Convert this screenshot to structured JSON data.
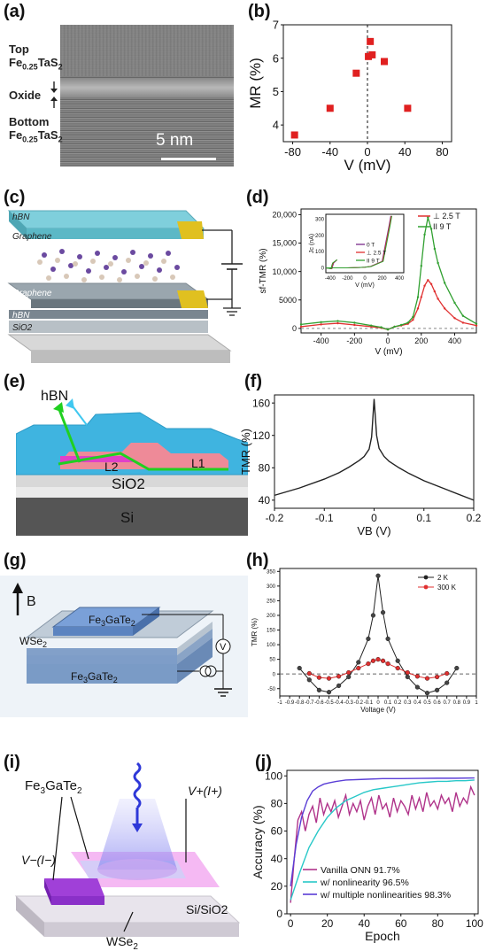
{
  "panels": {
    "a": {
      "label": "(a)",
      "top_label": "Top",
      "top_material": "Fe0.25TaS2",
      "oxide_label": "Oxide",
      "bottom_label": "Bottom",
      "bottom_material": "Fe0.25TaS2",
      "scale_bar": "5 nm"
    },
    "b": {
      "label": "(b)"
    },
    "c": {
      "label": "(c)",
      "layers": [
        "hBN",
        "Graphene",
        "Graphene",
        "hBN",
        "SiO2"
      ]
    },
    "d": {
      "label": "(d)",
      "inset_legend": [
        "0 T",
        "⊥ 2.5 T",
        "II 9 T"
      ]
    },
    "e": {
      "label": "(e)",
      "layer_labels": [
        "hBN",
        "L2",
        "L1",
        "SiO2",
        "Si"
      ]
    },
    "f": {
      "label": "(f)"
    },
    "g": {
      "label": "(g)",
      "field": "B",
      "top_layer": "Fe3GaTe2",
      "spacer": "WSe2",
      "bottom_layer": "Fe3GaTe2",
      "meter": "V"
    },
    "h": {
      "label": "(h)"
    },
    "i": {
      "label": "(i)",
      "labels": [
        "Fe3GaTe2",
        "V+(I+)",
        "V−(I−)",
        "Si/SiO2",
        "WSe2"
      ]
    },
    "j": {
      "label": "(j)"
    }
  },
  "chart_data": [
    {
      "id": "b",
      "type": "scatter",
      "xlabel": "V (mV)",
      "ylabel": "MR (%)",
      "xlim": [
        -90,
        90
      ],
      "ylim": [
        3.5,
        7
      ],
      "xticks": [
        -80,
        -40,
        0,
        40,
        80
      ],
      "yticks": [
        4,
        5,
        6,
        7
      ],
      "points": [
        {
          "x": -78,
          "y": 3.7
        },
        {
          "x": -40,
          "y": 4.5
        },
        {
          "x": -12,
          "y": 5.55
        },
        {
          "x": 1,
          "y": 6.05
        },
        {
          "x": 3,
          "y": 6.5
        },
        {
          "x": 5,
          "y": 6.1
        },
        {
          "x": 18,
          "y": 5.9
        },
        {
          "x": 43,
          "y": 4.5
        }
      ],
      "dashed_vline_at": 0,
      "color": "#e02020"
    },
    {
      "id": "d",
      "type": "line",
      "xlabel": "V (mV)",
      "ylabel": "sf-TMR (%)",
      "xlim": [
        -520,
        530
      ],
      "ylim": [
        -800,
        21000
      ],
      "xticks": [
        -400,
        -200,
        0,
        200,
        400
      ],
      "yticks": [
        0,
        5000,
        10000,
        15000,
        20000
      ],
      "ytick_labels": [
        "0",
        "5000",
        "10,000",
        "15,000",
        "20,000"
      ],
      "series": [
        {
          "name": "⊥ 2.5 T",
          "color": "#e03030",
          "x": [
            -520,
            -400,
            -300,
            -200,
            -100,
            -40,
            0,
            40,
            80,
            120,
            150,
            180,
            200,
            220,
            240,
            260,
            280,
            300,
            340,
            400,
            450,
            530
          ],
          "y": [
            300,
            700,
            900,
            600,
            300,
            100,
            -200,
            300,
            500,
            800,
            1500,
            3500,
            5500,
            7500,
            8500,
            7800,
            6500,
            5200,
            3500,
            1800,
            1000,
            500
          ]
        },
        {
          "name": "II 9 T",
          "color": "#30a030",
          "x": [
            -520,
            -400,
            -300,
            -200,
            -100,
            -40,
            0,
            40,
            80,
            120,
            150,
            180,
            200,
            220,
            240,
            260,
            280,
            300,
            340,
            400,
            450,
            530
          ],
          "y": [
            700,
            1100,
            1300,
            1000,
            500,
            200,
            -200,
            300,
            600,
            1000,
            2000,
            5500,
            11000,
            16500,
            19500,
            17500,
            14000,
            11500,
            8000,
            4500,
            2200,
            800
          ]
        }
      ],
      "inset": {
        "xlabel": "V (mV)",
        "ylabel": "Jc (nA)",
        "xticks": [
          -400,
          -200,
          0,
          200,
          400
        ],
        "yticks": [
          0,
          100,
          200,
          300
        ],
        "series_names": [
          "0 T",
          "⊥ 2.5 T",
          "II 9 T"
        ],
        "series_colors": [
          "#7a2a8a",
          "#e03030",
          "#30a030"
        ]
      }
    },
    {
      "id": "f",
      "type": "line",
      "xlabel": "VB (V)",
      "ylabel": "TMR (%)",
      "xlim": [
        -0.2,
        0.2
      ],
      "ylim": [
        30,
        170
      ],
      "xticks": [
        -0.2,
        -0.1,
        0.0,
        0.1,
        0.2
      ],
      "yticks": [
        40,
        80,
        120,
        160
      ],
      "series": [
        {
          "color": "#222222",
          "x": [
            -0.2,
            -0.15,
            -0.1,
            -0.07,
            -0.05,
            -0.03,
            -0.02,
            -0.01,
            -0.005,
            0,
            0.005,
            0.01,
            0.02,
            0.03,
            0.05,
            0.07,
            0.1,
            0.15,
            0.2
          ],
          "y": [
            46,
            55,
            66,
            74,
            81,
            89,
            94,
            103,
            118,
            165,
            120,
            104,
            94,
            88,
            80,
            73,
            64,
            52,
            40
          ]
        }
      ]
    },
    {
      "id": "h",
      "type": "line",
      "xlabel": "Voltage (V)",
      "ylabel": "TMR (%)",
      "xlim": [
        -1.0,
        1.0
      ],
      "ylim": [
        -75,
        360
      ],
      "xticks": [
        -1.0,
        -0.9,
        -0.8,
        -0.7,
        -0.6,
        -0.5,
        -0.4,
        -0.3,
        -0.2,
        -0.1,
        0.0,
        0.1,
        0.2,
        0.3,
        0.4,
        0.5,
        0.6,
        0.7,
        0.8,
        0.9,
        1.0
      ],
      "yticks": [
        -50,
        0,
        50,
        100,
        150,
        200,
        250,
        300,
        350
      ],
      "series": [
        {
          "name": "2 K",
          "color": "#222222",
          "x": [
            -0.8,
            -0.7,
            -0.6,
            -0.5,
            -0.4,
            -0.3,
            -0.2,
            -0.1,
            -0.05,
            0,
            0.05,
            0.1,
            0.2,
            0.3,
            0.4,
            0.5,
            0.6,
            0.7,
            0.8
          ],
          "y": [
            20,
            -20,
            -55,
            -62,
            -40,
            -10,
            40,
            120,
            200,
            335,
            210,
            120,
            45,
            -10,
            -45,
            -65,
            -55,
            -30,
            20
          ]
        },
        {
          "name": "300 K",
          "color": "#e03030",
          "x": [
            -0.7,
            -0.6,
            -0.5,
            -0.4,
            -0.3,
            -0.2,
            -0.1,
            -0.05,
            0,
            0.05,
            0.1,
            0.2,
            0.3,
            0.4,
            0.5,
            0.6,
            0.7
          ],
          "y": [
            2,
            -12,
            -15,
            -8,
            5,
            20,
            35,
            45,
            50,
            45,
            35,
            20,
            5,
            -8,
            -15,
            -10,
            2
          ]
        }
      ],
      "hline_dashed_at": 0
    },
    {
      "id": "j",
      "type": "line",
      "xlabel": "Epoch",
      "ylabel": "Accuracy (%)",
      "xlim": [
        -2,
        102
      ],
      "ylim": [
        0,
        104
      ],
      "xticks": [
        0,
        20,
        40,
        60,
        80,
        100
      ],
      "yticks": [
        0,
        20,
        40,
        60,
        80,
        100
      ],
      "series": [
        {
          "name": "Vanilla ONN 91.7%",
          "color": "#b0338a",
          "x": [
            0,
            2,
            4,
            6,
            8,
            10,
            12,
            14,
            16,
            18,
            20,
            22,
            24,
            26,
            28,
            30,
            32,
            34,
            36,
            38,
            40,
            42,
            44,
            46,
            48,
            50,
            52,
            54,
            56,
            58,
            60,
            62,
            64,
            66,
            68,
            70,
            72,
            74,
            76,
            78,
            80,
            82,
            84,
            86,
            88,
            90,
            92,
            94,
            96,
            98,
            100
          ],
          "y": [
            8,
            40,
            68,
            74,
            60,
            72,
            78,
            66,
            84,
            72,
            80,
            74,
            82,
            70,
            78,
            86,
            72,
            80,
            74,
            82,
            68,
            78,
            84,
            72,
            86,
            76,
            80,
            70,
            84,
            74,
            82,
            78,
            72,
            86,
            76,
            84,
            74,
            88,
            78,
            82,
            76,
            86,
            80,
            84,
            74,
            88,
            78,
            84,
            80,
            92,
            86
          ]
        },
        {
          "name": "w/ nonlinearity 96.5%",
          "color": "#28c8c8",
          "x": [
            0,
            5,
            10,
            15,
            20,
            25,
            30,
            35,
            40,
            45,
            50,
            55,
            60,
            65,
            70,
            75,
            80,
            85,
            90,
            95,
            100
          ],
          "y": [
            10,
            30,
            48,
            60,
            70,
            77,
            82,
            85,
            88,
            90,
            91,
            92,
            93,
            94,
            95,
            95.5,
            96,
            96,
            96.5,
            96.5,
            97
          ]
        },
        {
          "name": "w/ multiple nonlinearities 98.3%",
          "color": "#5a3ed6",
          "x": [
            0,
            3,
            6,
            9,
            12,
            15,
            18,
            21,
            25,
            30,
            40,
            50,
            60,
            70,
            80,
            90,
            100
          ],
          "y": [
            20,
            50,
            70,
            82,
            89,
            92,
            94,
            95,
            96,
            97,
            97.5,
            98,
            98,
            98.2,
            98.3,
            98.3,
            98.5
          ]
        }
      ]
    }
  ]
}
